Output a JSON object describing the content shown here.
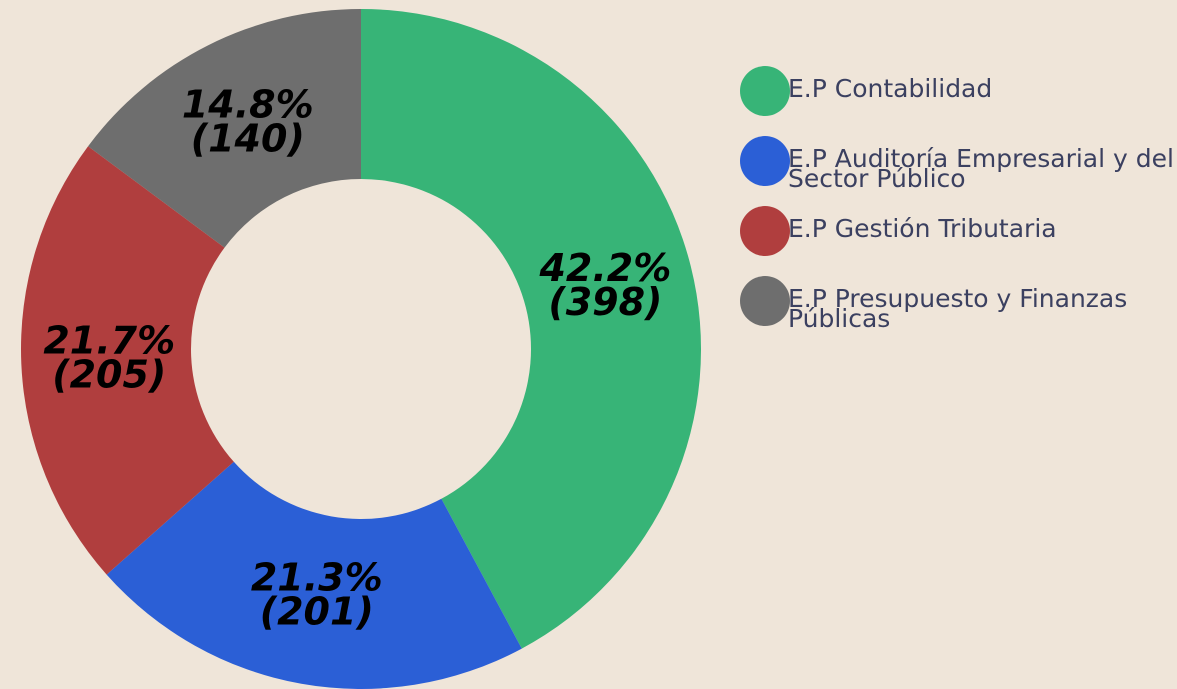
{
  "chart_data": {
    "type": "donut",
    "categories": [
      "E.P Contabilidad",
      "E.P Auditoría Empresarial y del Sector Público",
      "E.P Gestión Tributaria",
      "E.P Presupuesto y Finanzas Públicas"
    ],
    "values": [
      398,
      201,
      205,
      140
    ],
    "value_labels": [
      [
        "42.2%",
        "(398)"
      ],
      [
        "21.3%",
        "(201)"
      ],
      [
        "21.7%",
        "(205)"
      ],
      [
        "14.8%",
        "(140)"
      ]
    ],
    "colors": [
      "#37b477",
      "#2b5fd6",
      "#b03e3e",
      "#6e6e6e"
    ],
    "legend": "right"
  }
}
